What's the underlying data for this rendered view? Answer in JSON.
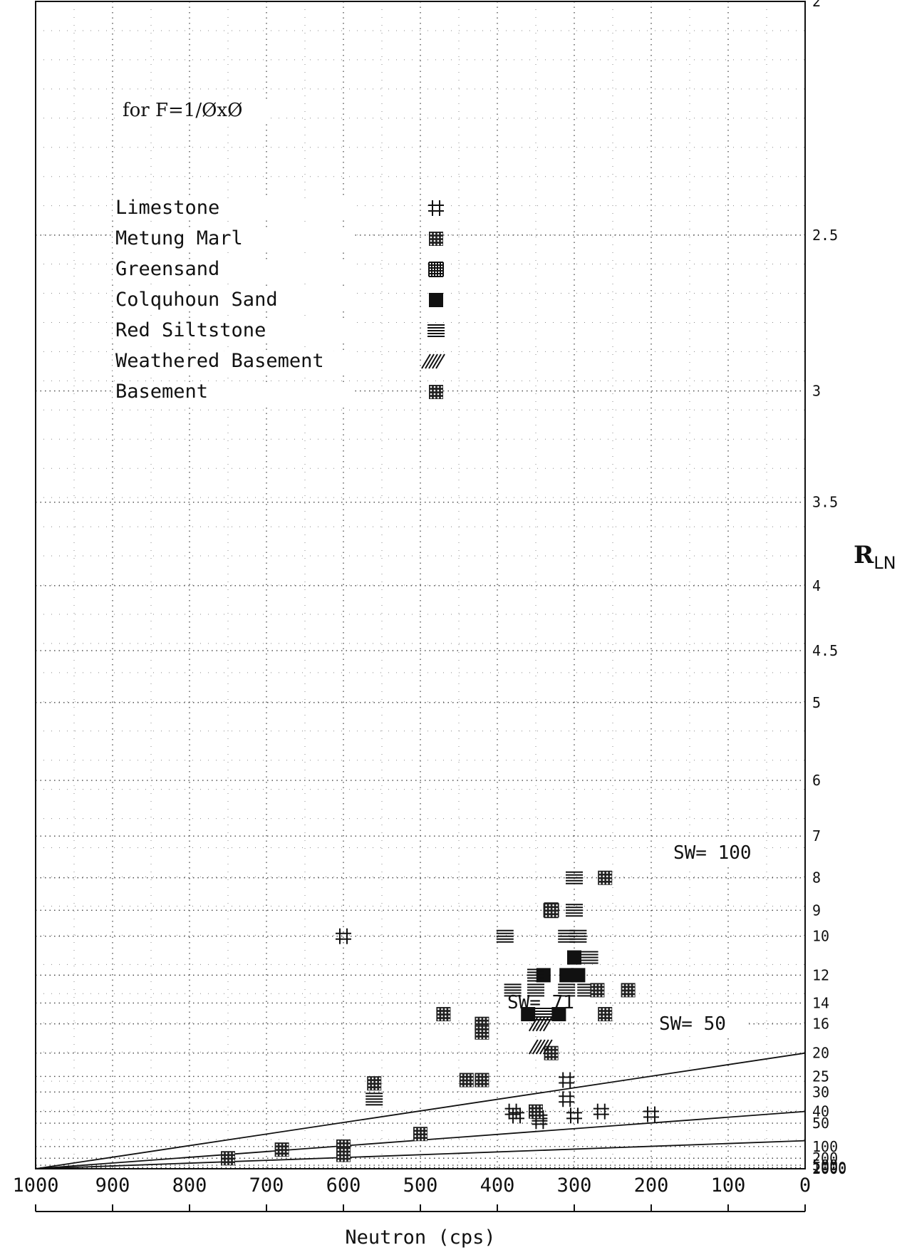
{
  "chart_data": {
    "type": "scatter",
    "title": "for F=1/ØxØ",
    "xlabel": "Neutron (cps)",
    "ylabel": "R_LN",
    "ylabel_main": "R",
    "ylabel_sub": "LN",
    "x_axis": {
      "range": [
        1000,
        0
      ],
      "ticks": [
        1000,
        900,
        800,
        700,
        600,
        500,
        400,
        300,
        200,
        100,
        0
      ],
      "tick_labels": [
        "1000",
        "900",
        "800",
        "700",
        "600",
        "500",
        "400",
        "300",
        "200",
        "100",
        "0"
      ]
    },
    "y_axis": {
      "scale": "reciprocal",
      "range": [
        2,
        2000
      ],
      "side": "right",
      "ticks": [
        2,
        2.5,
        3,
        3.5,
        4,
        4.5,
        5,
        6,
        7,
        8,
        9,
        10,
        12,
        14,
        16,
        20,
        25,
        30,
        40,
        50,
        100,
        200,
        500,
        1000,
        2000
      ],
      "tick_labels": [
        "2",
        "2.5",
        "3",
        "3.5",
        "4",
        "4.5",
        "5",
        "6",
        "7",
        "8",
        "9",
        "10",
        "12",
        "14",
        "16",
        "20",
        "25",
        "30",
        "40",
        "50",
        "100",
        "200",
        "500",
        "1000",
        "2000"
      ]
    },
    "grid": "dotted",
    "legend": {
      "placement": "top-left",
      "entries": [
        {
          "name": "Limestone",
          "symbol": "hash"
        },
        {
          "name": "Metung Marl",
          "symbol": "cross-dots"
        },
        {
          "name": "Greensand",
          "symbol": "grid"
        },
        {
          "name": "Colquhoun Sand",
          "symbol": "solid"
        },
        {
          "name": "Red Siltstone",
          "symbol": "lines"
        },
        {
          "name": "Weathered Basement",
          "symbol": "diagonal"
        },
        {
          "name": "Basement",
          "symbol": "cross-dots"
        }
      ]
    },
    "series": [
      {
        "name": "Limestone",
        "symbol": "hash",
        "points": [
          [
            600,
            10
          ],
          [
            310,
            26
          ],
          [
            310,
            33
          ],
          [
            265,
            40
          ],
          [
            300,
            43
          ],
          [
            380,
            40
          ],
          [
            375,
            43
          ],
          [
            345,
            45
          ],
          [
            345,
            48
          ],
          [
            200,
            42
          ]
        ]
      },
      {
        "name": "Metung Marl",
        "symbol": "cross-dots",
        "points": [
          [
            470,
            15
          ],
          [
            420,
            16
          ],
          [
            420,
            17
          ],
          [
            560,
            27
          ],
          [
            440,
            26
          ],
          [
            420,
            26
          ],
          [
            350,
            40
          ],
          [
            500,
            65
          ],
          [
            600,
            100
          ],
          [
            680,
            115
          ],
          [
            600,
            155
          ],
          [
            750,
            200
          ],
          [
            330,
            20
          ]
        ]
      },
      {
        "name": "Greensand",
        "symbol": "grid",
        "points": [
          [
            330,
            9
          ]
        ]
      },
      {
        "name": "Colquhoun Sand",
        "symbol": "solid",
        "points": [
          [
            340,
            12
          ],
          [
            310,
            12
          ],
          [
            295,
            12
          ],
          [
            360,
            15
          ],
          [
            320,
            15
          ],
          [
            300,
            11
          ]
        ]
      },
      {
        "name": "Red Siltstone",
        "symbol": "lines",
        "points": [
          [
            300,
            8
          ],
          [
            300,
            9
          ],
          [
            295,
            10
          ],
          [
            390,
            10
          ],
          [
            280,
            11
          ],
          [
            350,
            12
          ],
          [
            380,
            13
          ],
          [
            350,
            13
          ],
          [
            310,
            13
          ],
          [
            285,
            13
          ],
          [
            340,
            15
          ],
          [
            560,
            33
          ],
          [
            310,
            10
          ]
        ]
      },
      {
        "name": "Weathered Basement",
        "symbol": "diagonal",
        "points": [
          [
            340,
            16
          ],
          [
            340,
            19
          ]
        ]
      },
      {
        "name": "Basement",
        "symbol": "cross-dots",
        "points": [
          [
            260,
            8
          ],
          [
            330,
            9
          ],
          [
            270,
            13
          ],
          [
            230,
            13
          ],
          [
            260,
            15
          ]
        ]
      }
    ],
    "sw_lines": [
      {
        "label": "SW= 100",
        "endpoint": [
          0,
          20
        ]
      },
      {
        "label": "SW= 71",
        "endpoint": [
          0,
          40
        ]
      },
      {
        "label": "SW= 50",
        "endpoint": [
          0,
          80
        ]
      }
    ]
  }
}
